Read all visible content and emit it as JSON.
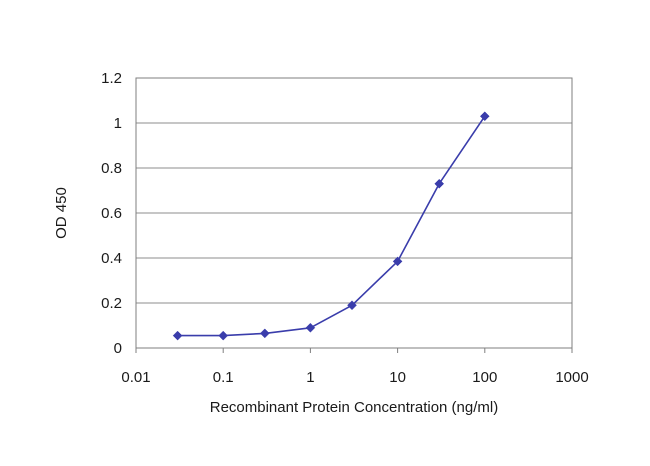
{
  "chart_data": {
    "type": "line",
    "xlabel": "Recombinant Protein Concentration (ng/ml)",
    "ylabel": "OD 450",
    "x_scale": "log",
    "xlim": [
      0.01,
      1000
    ],
    "ylim": [
      0,
      1.2
    ],
    "x_ticks": [
      "0.01",
      "0.1",
      "1",
      "10",
      "100",
      "1000"
    ],
    "y_ticks": [
      "0",
      "0.2",
      "0.4",
      "0.6",
      "0.8",
      "1",
      "1.2"
    ],
    "grid": "horizontal",
    "legend": "none",
    "series": [
      {
        "color": "#3a3dab",
        "marker": "diamond",
        "points": [
          {
            "x": 0.03,
            "y": 0.055
          },
          {
            "x": 0.1,
            "y": 0.055
          },
          {
            "x": 0.3,
            "y": 0.065
          },
          {
            "x": 1,
            "y": 0.09
          },
          {
            "x": 3,
            "y": 0.19
          },
          {
            "x": 10,
            "y": 0.385
          },
          {
            "x": 30,
            "y": 0.73
          },
          {
            "x": 100,
            "y": 1.03
          }
        ]
      }
    ]
  }
}
